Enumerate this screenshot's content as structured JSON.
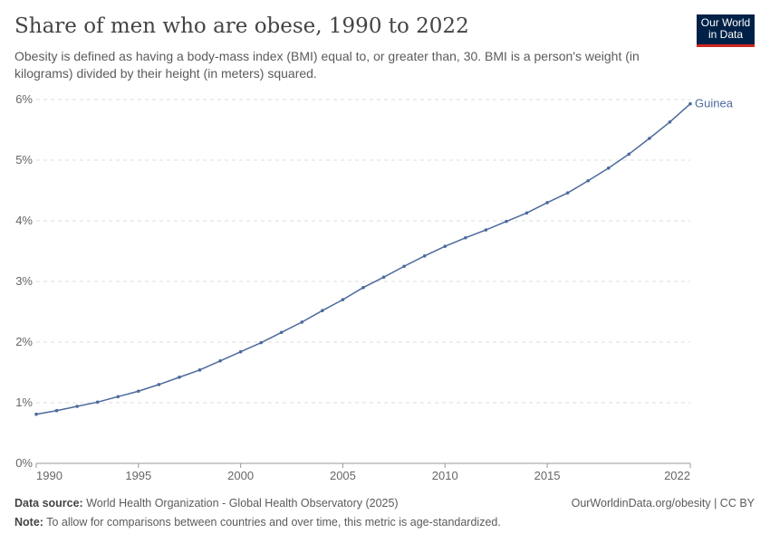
{
  "header": {
    "title": "Share of men who are obese, 1990 to 2022",
    "subtitle": "Obesity is defined as having a body-mass index (BMI) equal to, or greater than, 30. BMI is a person's weight (in kilograms) divided by their height (in meters) squared.",
    "logo": "Our World in Data"
  },
  "footer": {
    "source_label": "Data source:",
    "source": "World Health Organization - Global Health Observatory (2025)",
    "link": "OurWorldinData.org/obesity | CC BY",
    "note_label": "Note:",
    "note": "To allow for comparisons between countries and over time, this metric is age-standardized."
  },
  "chart_data": {
    "type": "line",
    "title": "Share of men who are obese, 1990 to 2022",
    "xlim": [
      1990,
      2022
    ],
    "ylim": [
      0,
      6
    ],
    "grid": "horizontal dashed",
    "legend": "end-of-line label",
    "y_ticks": [
      0,
      1,
      2,
      3,
      4,
      5,
      6
    ],
    "y_tick_labels": [
      "0%",
      "1%",
      "2%",
      "3%",
      "4%",
      "5%",
      "6%"
    ],
    "x_ticks": [
      1990,
      1995,
      2000,
      2005,
      2010,
      2015,
      2022
    ],
    "x_tick_labels": [
      "1990",
      "1995",
      "2000",
      "2005",
      "2010",
      "2015",
      "2022"
    ],
    "series": [
      {
        "name": "Guinea",
        "color": "#4c6a9c",
        "x": [
          1990,
          1991,
          1992,
          1993,
          1994,
          1995,
          1996,
          1997,
          1998,
          1999,
          2000,
          2001,
          2002,
          2003,
          2004,
          2005,
          2006,
          2007,
          2008,
          2009,
          2010,
          2011,
          2012,
          2013,
          2014,
          2015,
          2016,
          2017,
          2018,
          2019,
          2020,
          2021,
          2022
        ],
        "values": [
          0.81,
          0.87,
          0.94,
          1.01,
          1.1,
          1.19,
          1.3,
          1.42,
          1.54,
          1.69,
          1.84,
          1.99,
          2.16,
          2.33,
          2.52,
          2.7,
          2.9,
          3.07,
          3.25,
          3.42,
          3.58,
          3.72,
          3.85,
          3.99,
          4.13,
          4.3,
          4.46,
          4.66,
          4.87,
          5.1,
          5.36,
          5.63,
          5.93
        ]
      }
    ]
  }
}
